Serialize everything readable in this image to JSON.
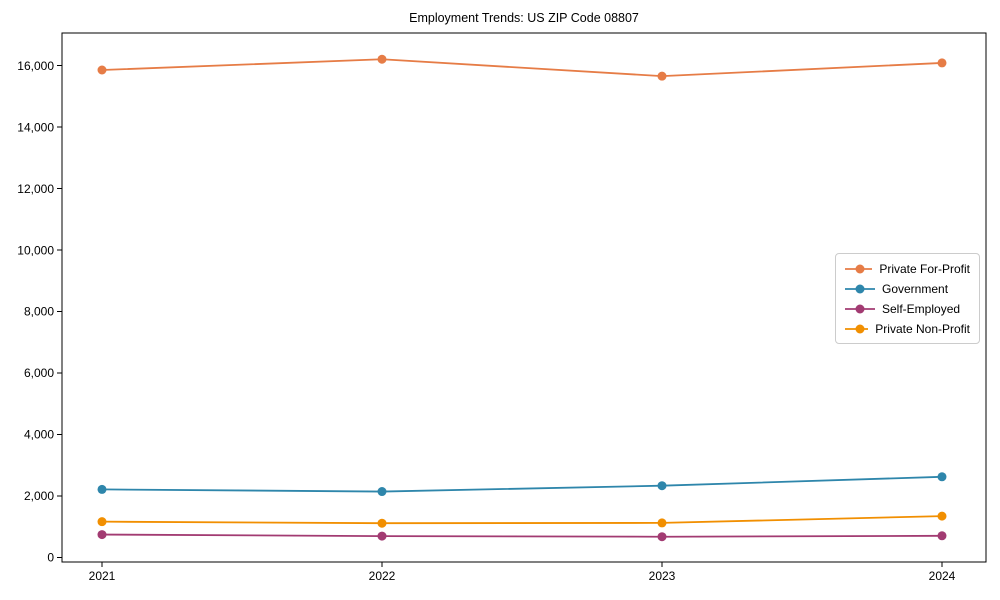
{
  "title": "Employment Trends: US ZIP Code 08807",
  "chart_data": {
    "type": "line",
    "title": "Employment Trends: US ZIP Code 08807",
    "categories": [
      "2021",
      "2022",
      "2023",
      "2024"
    ],
    "series": [
      {
        "name": "Private For-Profit",
        "color": "#E67C46",
        "values": [
          15860,
          16210,
          15660,
          16090
        ]
      },
      {
        "name": "Government",
        "color": "#2E86AB",
        "values": [
          2210,
          2140,
          2330,
          2620
        ]
      },
      {
        "name": "Self-Employed",
        "color": "#A23B72",
        "values": [
          740,
          690,
          670,
          700
        ]
      },
      {
        "name": "Private Non-Profit",
        "color": "#F18F01",
        "values": [
          1160,
          1110,
          1120,
          1340
        ]
      }
    ],
    "xlabel": "",
    "ylabel": "",
    "ylim": [
      0,
      17000
    ],
    "yticks": [
      0,
      2000,
      4000,
      6000,
      8000,
      10000,
      12000,
      14000,
      16000
    ],
    "ytick_labels": [
      "0",
      "2,000",
      "4,000",
      "6,000",
      "8,000",
      "10,000",
      "12,000",
      "14,000",
      "16,000"
    ],
    "grid": false,
    "legend_position": "center right"
  }
}
